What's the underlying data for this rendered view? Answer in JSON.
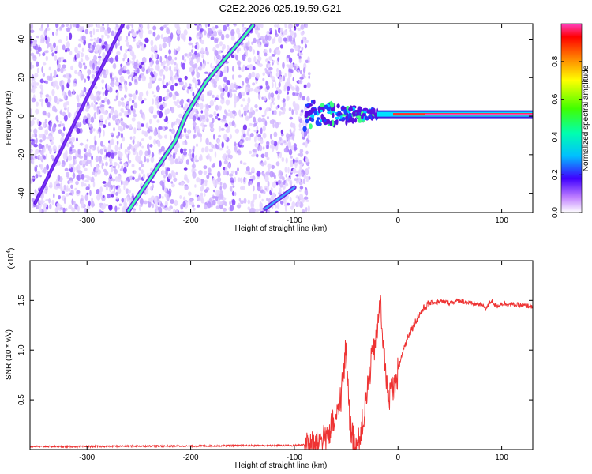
{
  "title": "C2E2.2026.025.19.59.G21",
  "chart_data": [
    {
      "type": "heatmap",
      "title": "C2E2.2026.025.19.59.G21",
      "xlabel": "Height of straight line (km)",
      "ylabel": "Frequency (Hz)",
      "xlim": [
        -355,
        130
      ],
      "ylim": [
        -50,
        48
      ],
      "xticks": [
        -300,
        -200,
        -100,
        0,
        100
      ],
      "yticks": [
        -40,
        -20,
        0,
        20,
        40
      ],
      "colorbar": {
        "label": "Normalized spectral amplitude",
        "range": [
          0.0,
          1.0
        ],
        "ticks": [
          0.0,
          0.2,
          0.4,
          0.6,
          0.8
        ],
        "colormap": [
          "#ffffff",
          "#9b30ff",
          "#0000ff",
          "#00e5ff",
          "#00ff00",
          "#ffff00",
          "#ff8000",
          "#ff0000",
          "#ff40c0"
        ]
      },
      "features": {
        "main_line": {
          "x": [
            -260,
            -215,
            -205,
            -185,
            -140
          ],
          "y": [
            -49,
            -13,
            0,
            18,
            47
          ],
          "amplitude": 0.3
        },
        "lower_line": {
          "x": [
            -128,
            -100
          ],
          "y": [
            -48,
            -37
          ],
          "amplitude": 0.3
        },
        "faint_line": {
          "x": [
            -350,
            -265
          ],
          "y": [
            -45,
            48
          ],
          "amplitude": 0.15
        },
        "carrier": {
          "x": [
            -20,
            130
          ],
          "y": [
            1,
            1
          ],
          "amplitude": 0.85
        },
        "noise_edge_x": -90
      }
    },
    {
      "type": "line",
      "xlabel": "Height of straight line (km)",
      "ylabel": "SNR (10 * v/v)",
      "yscale_label": "(x10",
      "yscale_exponent": "4",
      "xlim": [
        -355,
        130
      ],
      "ylim": [
        0.0,
        1.9
      ],
      "xticks": [
        -300,
        -200,
        -100,
        0,
        100
      ],
      "yticks": [
        0.5,
        1.0,
        1.5
      ],
      "color": "#ee3333",
      "series": [
        {
          "x": [
            -355,
            -300,
            -250,
            -200,
            -150,
            -100,
            -80,
            -65,
            -58,
            -53,
            -50,
            -47,
            -45,
            -42,
            -38,
            -34,
            -30,
            -27,
            -24,
            -20,
            -17,
            -14,
            -10,
            -5,
            0,
            5,
            10,
            15,
            20,
            25,
            30,
            40,
            50,
            60,
            70,
            80,
            85,
            90,
            95,
            100,
            110,
            120,
            130
          ],
          "y": [
            0.03,
            0.03,
            0.035,
            0.035,
            0.04,
            0.04,
            0.06,
            0.18,
            0.35,
            0.7,
            1.05,
            0.4,
            0.15,
            0.05,
            0.08,
            0.25,
            0.55,
            0.8,
            1.0,
            1.2,
            1.5,
            1.0,
            0.55,
            0.6,
            0.8,
            1.0,
            1.15,
            1.25,
            1.35,
            1.42,
            1.47,
            1.49,
            1.48,
            1.5,
            1.47,
            1.46,
            1.42,
            1.5,
            1.44,
            1.47,
            1.46,
            1.45,
            1.44
          ]
        }
      ]
    }
  ]
}
